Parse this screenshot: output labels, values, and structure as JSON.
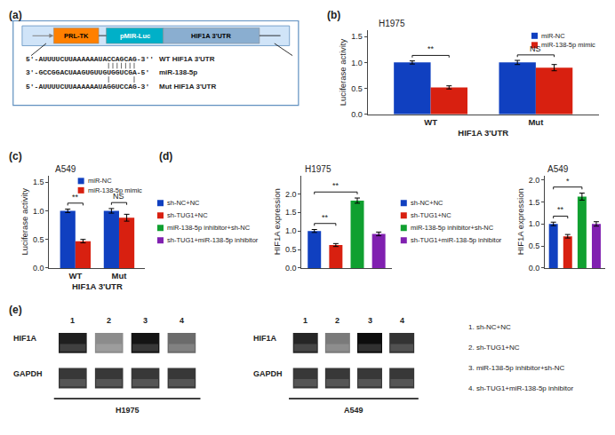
{
  "chart_data": [
    {
      "type": "diagram",
      "panel_label": "(a)",
      "boxes": [
        {
          "text": "PRL-TK",
          "color": "#FF8000"
        },
        {
          "text": "pMIR-Luc",
          "color": "#00B0C8"
        },
        {
          "text": "HIF1A 3'UTR",
          "color": "#8AAED0"
        }
      ],
      "sequences": [
        {
          "text": "5'-AUUUUCUUAAAAAAUACCAGCAG-3''",
          "label": "WT HIF1A 3'UTR"
        },
        {
          "text": "3'-GCCGGACUAAGUGUUGUGGUCGA-5'",
          "label": "miR-138-5p"
        },
        {
          "text": "5'-AUUUUCUUAAAAAAUAGGUCCAG-3'",
          "label": "Mut HIF1A 3'UTR"
        }
      ]
    },
    {
      "type": "bar",
      "panel_label": "(b)",
      "title": "H1975",
      "xlabel": "HIF1A 3'UTR",
      "ylabel": "Luciferase activity",
      "categories": [
        "WT",
        "Mut"
      ],
      "series": [
        {
          "name": "miR-NC",
          "color": "#1040C0",
          "values": [
            1.0,
            1.0
          ],
          "errors": [
            0.03,
            0.04
          ]
        },
        {
          "name": "miR-138-5p mimic",
          "color": "#D82010",
          "values": [
            0.52,
            0.9
          ],
          "errors": [
            0.03,
            0.06
          ]
        }
      ],
      "ylim": [
        0,
        1.62
      ],
      "yticks": [
        {
          "value": 0,
          "label": "0.0"
        },
        0.5,
        {
          "value": 1,
          "label": "1.0"
        },
        1.5
      ],
      "significance": [
        "**",
        "NS"
      ],
      "legend": "upper right",
      "grid": false
    },
    {
      "type": "bar",
      "panel_label": "(c)",
      "title": "A549",
      "xlabel": "HIF1A 3'UTR",
      "ylabel": "Luciferase activity",
      "categories": [
        "WT",
        "Mut"
      ],
      "series": [
        {
          "name": "miR-NC",
          "color": "#1040C0",
          "values": [
            1.0,
            1.0
          ],
          "errors": [
            0.03,
            0.04
          ]
        },
        {
          "name": "miR-138-5p mimic",
          "color": "#D82010",
          "values": [
            0.47,
            0.88
          ],
          "errors": [
            0.03,
            0.06
          ]
        }
      ],
      "ylim": [
        0,
        1.62
      ],
      "yticks": [
        {
          "value": 0,
          "label": "0.0"
        },
        0.5,
        {
          "value": 1,
          "label": "1.0"
        },
        1.5
      ],
      "significance": [
        "**",
        "NS"
      ],
      "legend": "upper right",
      "grid": false
    },
    {
      "type": "bar",
      "panel_label": "(d)",
      "title": "H1975",
      "ylabel": "HIF1A expression",
      "categories": [
        "sh-NC+NC",
        "sh-TUG1+NC",
        "miR-138-5p inhibitor+sh-NC",
        "sh-TUG1+miR-138-5p inhibitor"
      ],
      "values": [
        1.0,
        0.62,
        1.82,
        0.92
      ],
      "errors": [
        0.04,
        0.04,
        0.07,
        0.05
      ],
      "colors": [
        "#1040C0",
        "#D82010",
        "#10A030",
        "#8020B0"
      ],
      "ylim": [
        0,
        2.5
      ],
      "yticks": [
        {
          "value": 0,
          "label": "0.0"
        },
        0.5,
        {
          "value": 1,
          "label": "1.0"
        },
        1.5,
        {
          "value": 2,
          "label": "2.0"
        }
      ],
      "comparisons": [
        {
          "from": 0,
          "to": 1,
          "label": "**"
        },
        {
          "from": 0,
          "to": 2,
          "label": "**"
        }
      ],
      "legend": "left",
      "tick_labels": "y",
      "grid": false
    },
    {
      "type": "bar",
      "title": "A549",
      "ylabel": "HIF1A expression",
      "categories": [
        "sh-NC+NC",
        "sh-TUG1+NC",
        "miR-138-5p inhibitor+sh-NC",
        "sh-TUG1+miR-138-5p inhibitor"
      ],
      "values": [
        1.0,
        0.72,
        1.62,
        1.0
      ],
      "errors": [
        0.04,
        0.04,
        0.08,
        0.05
      ],
      "colors": [
        "#1040C0",
        "#D82010",
        "#10A030",
        "#8020B0"
      ],
      "ylim": [
        0,
        2.1
      ],
      "yticks": [
        {
          "value": 0,
          "label": "0.0"
        },
        0.5,
        {
          "value": 1,
          "label": "1.0"
        },
        1.5,
        {
          "value": 2,
          "label": "2.0"
        }
      ],
      "comparisons": [
        {
          "from": 0,
          "to": 1,
          "label": "**"
        },
        {
          "from": 0,
          "to": 2,
          "label": "*"
        }
      ],
      "legend": "left",
      "tick_labels": "y",
      "grid": false
    },
    {
      "type": "blot",
      "panel_label": "(e)",
      "xlabel": "H1975",
      "lanes": [
        "1",
        "2",
        "3",
        "4"
      ],
      "rows": [
        {
          "name": "HIF1A",
          "colors": [
            "#1f1f1f",
            "#8c8c8c",
            "#141414",
            "#6b6b6b"
          ]
        },
        {
          "name": "GAPDH",
          "colors": [
            "#383838",
            "#383838",
            "#383838",
            "#383838"
          ]
        }
      ]
    },
    {
      "type": "blot",
      "xlabel": "A549",
      "lanes": [
        "1",
        "2",
        "3",
        "4"
      ],
      "rows": [
        {
          "name": "HIF1A",
          "colors": [
            "#262626",
            "#7a7a7a",
            "#0d0d0d",
            "#333333"
          ]
        },
        {
          "name": "GAPDH",
          "colors": [
            "#383838",
            "#383838",
            "#383838",
            "#383838"
          ]
        }
      ]
    },
    {
      "type": "text",
      "annotations": [
        "1. sh-NC+NC",
        "2. sh-TUG1+NC",
        "3. miR-138-5p inhibitor+sh-NC",
        "4. sh-TUG1+miR-138-5p inhibitor"
      ]
    }
  ]
}
